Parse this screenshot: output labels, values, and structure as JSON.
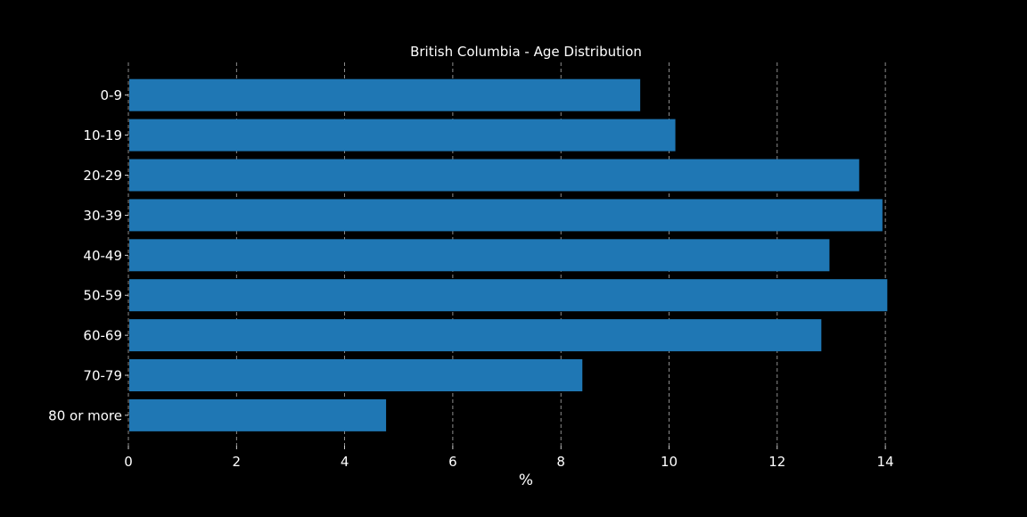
{
  "chart_data": {
    "type": "bar",
    "orientation": "horizontal",
    "title": "British Columbia - Age Distribution",
    "xlabel": "%",
    "ylabel": "",
    "categories": [
      "0-9",
      "10-19",
      "20-29",
      "30-39",
      "40-49",
      "50-59",
      "60-69",
      "70-79",
      "80 or more"
    ],
    "values": [
      9.45,
      10.1,
      13.5,
      13.93,
      12.95,
      14.02,
      12.8,
      8.38,
      4.75
    ],
    "xlim": [
      0,
      16
    ],
    "xticks": [
      0,
      2,
      4,
      6,
      8,
      10,
      12,
      14
    ],
    "grid": "vertical-dashed",
    "bar_color": "#1f77b4",
    "background_color": "#000000",
    "text_color": "#ffffff",
    "grid_color": "#b0b0b0"
  }
}
